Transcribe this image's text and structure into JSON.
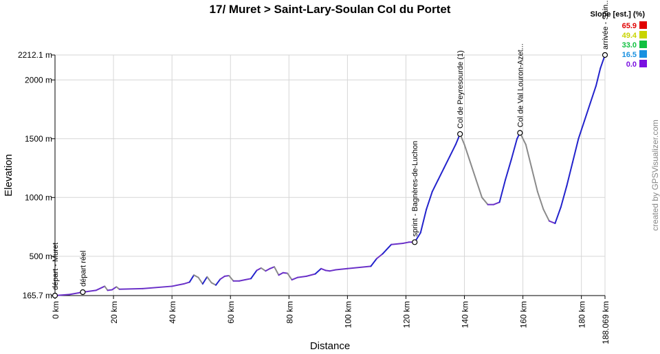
{
  "chart_data": {
    "type": "area",
    "title": "17/ Muret > Saint-Lary-Soulan Col du Portet",
    "xlabel": "Distance",
    "ylabel": "Elevation",
    "credit": "created by GPSVisualizer.com",
    "xlim": [
      0,
      188.069
    ],
    "ylim": [
      165.7,
      2212.1
    ],
    "x_ticks": [
      {
        "v": 0,
        "label": "0 km"
      },
      {
        "v": 20,
        "label": "20 km"
      },
      {
        "v": 40,
        "label": "40 km"
      },
      {
        "v": 60,
        "label": "60 km"
      },
      {
        "v": 80,
        "label": "80 km"
      },
      {
        "v": 100,
        "label": "100 km"
      },
      {
        "v": 120,
        "label": "120 km"
      },
      {
        "v": 140,
        "label": "140 km"
      },
      {
        "v": 160,
        "label": "160 km"
      },
      {
        "v": 180,
        "label": "180 km"
      },
      {
        "v": 188.069,
        "label": "188.069 km"
      }
    ],
    "y_ticks": [
      {
        "v": 165.7,
        "label": "165.7 m"
      },
      {
        "v": 500,
        "label": "500 m"
      },
      {
        "v": 1000,
        "label": "1000 m"
      },
      {
        "v": 1500,
        "label": "1500 m"
      },
      {
        "v": 2000,
        "label": "2000 m"
      },
      {
        "v": 2212.1,
        "label": "2212.1 m"
      }
    ],
    "legend": {
      "title": "Slope [est.] (%)",
      "placement": "top-right",
      "entries": [
        {
          "label": "65.9",
          "color": "#e00000"
        },
        {
          "label": "49.4",
          "color": "#c8d400"
        },
        {
          "label": "33.0",
          "color": "#10c040"
        },
        {
          "label": "16.5",
          "color": "#1890e0"
        },
        {
          "label": "0.0",
          "color": "#7a10e0"
        }
      ]
    },
    "colors": {
      "ascent": "#2222cc",
      "descent": "#8a8a8a",
      "flat": "#6a30c8"
    },
    "waypoints": [
      {
        "x": 0,
        "y": 165.7,
        "label": "départ - Muret"
      },
      {
        "x": 9.5,
        "y": 195,
        "label": "départ réel"
      },
      {
        "x": 123,
        "y": 620,
        "label": "sprint - Bagnères-de-Luchon"
      },
      {
        "x": 138.5,
        "y": 1540,
        "label": "Col de Peyresourde (1)"
      },
      {
        "x": 159.0,
        "y": 1550,
        "label": "Col de Val Louron-Azet..."
      },
      {
        "x": 188.069,
        "y": 2212.1,
        "label": "arrivée - Sain..."
      }
    ],
    "series": [
      {
        "x": [
          0,
          5,
          9.5,
          14,
          17,
          18,
          19.5,
          21,
          22,
          30,
          40,
          44,
          46,
          47.5,
          49,
          50.5,
          52,
          53.5,
          55,
          56.5,
          58,
          59.5,
          61,
          63,
          65,
          67,
          69,
          70.5,
          72,
          73.5,
          75,
          76.5,
          78,
          79.5,
          81,
          83,
          86,
          89,
          91,
          92.5,
          94,
          96,
          100,
          108,
          110,
          112,
          115,
          119,
          121,
          123,
          125,
          127,
          129,
          131,
          133,
          135,
          137,
          138.5,
          140,
          142,
          144,
          146,
          148,
          150,
          152,
          154,
          156,
          158,
          159,
          161,
          163,
          165,
          167,
          169,
          171,
          173,
          175,
          177,
          179,
          181,
          183,
          185,
          186.5,
          188.069
        ],
        "y": [
          165.7,
          175,
          195,
          210,
          245,
          210,
          215,
          240,
          220,
          225,
          245,
          265,
          280,
          340,
          320,
          265,
          325,
          275,
          255,
          305,
          330,
          335,
          290,
          290,
          300,
          310,
          380,
          400,
          375,
          395,
          410,
          340,
          360,
          355,
          300,
          320,
          330,
          350,
          395,
          380,
          375,
          385,
          395,
          415,
          480,
          520,
          600,
          610,
          620,
          620,
          700,
          900,
          1050,
          1150,
          1250,
          1350,
          1450,
          1540,
          1450,
          1300,
          1150,
          1000,
          940,
          940,
          960,
          1150,
          1320,
          1500,
          1550,
          1450,
          1250,
          1050,
          900,
          800,
          780,
          920,
          1100,
          1300,
          1500,
          1650,
          1800,
          1950,
          2100,
          2212.1
        ]
      }
    ]
  }
}
